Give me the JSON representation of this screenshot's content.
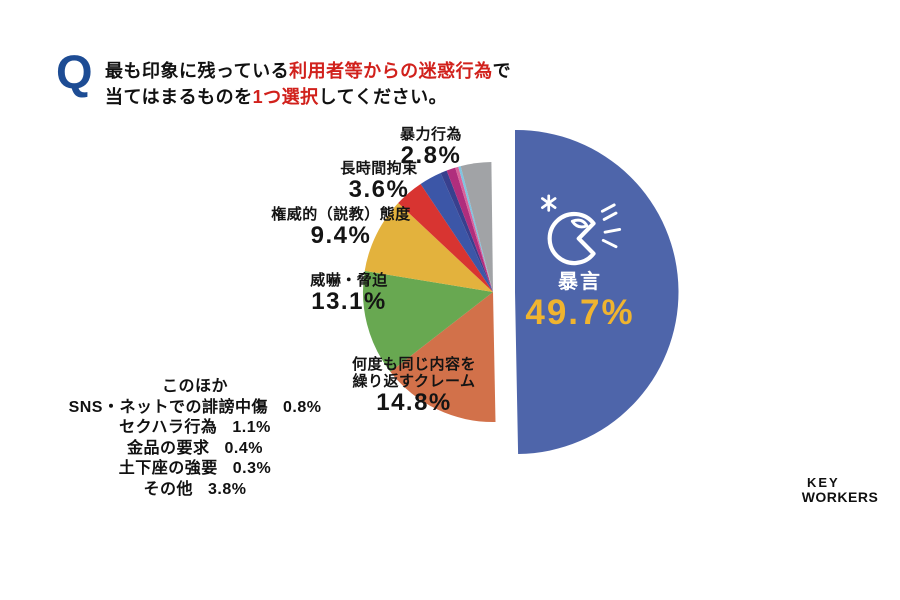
{
  "colors": {
    "q_mark_blue": "#1d4c94",
    "title_red": "#d1211c",
    "percent_yellow": "#f0b42f",
    "label_black": "#141414"
  },
  "question": {
    "mark": "Q",
    "line1": [
      {
        "t": "最も印象に残っている"
      },
      {
        "t": "利用者等からの迷惑行為"
      },
      {
        "t": "で"
      }
    ],
    "line2": [
      {
        "t": "当てはまるものを"
      },
      {
        "t": "1つ選択"
      },
      {
        "t": "してください。"
      }
    ]
  },
  "chart_data": {
    "type": "pie",
    "title": "最も印象に残っている利用者等からの迷惑行為で当てはまるものを1つ選択してください。",
    "unit": "%",
    "start_angle_deg": 0,
    "direction": "clockwise",
    "slices": [
      {
        "key": "verbal-abuse",
        "name": "暴言",
        "value": 49.7,
        "color": "#4e65aa",
        "exploded": true
      },
      {
        "key": "repeated-claims",
        "name": "何度も同じ内容を繰り返すクレーム",
        "value": 14.8,
        "color": "#d2714a"
      },
      {
        "key": "intimidation",
        "name": "威嚇・脅迫",
        "value": 13.1,
        "color": "#68a851"
      },
      {
        "key": "preachy-attitude",
        "name": "権威的（説教）態度",
        "value": 9.4,
        "color": "#e3b23d"
      },
      {
        "key": "long-restraint",
        "name": "長時間拘束",
        "value": 3.6,
        "color": "#d83431"
      },
      {
        "key": "violence",
        "name": "暴力行為",
        "value": 2.8,
        "color": "#3c56a7"
      },
      {
        "key": "sns-defamation",
        "name": "SNS・ネットでの誹謗中傷",
        "value": 0.8,
        "color": "#38408e"
      },
      {
        "key": "sexual-harassment",
        "name": "セクハラ行為",
        "value": 1.1,
        "color": "#b02e7d"
      },
      {
        "key": "demand-money",
        "name": "金品の要求",
        "value": 0.4,
        "color": "#d9639a"
      },
      {
        "key": "forced-dogeza",
        "name": "土下座の強要",
        "value": 0.3,
        "color": "#7fc4e1"
      },
      {
        "key": "other",
        "name": "その他",
        "value": 3.8,
        "color": "#a1a3a6"
      }
    ]
  },
  "labels": {
    "main": {
      "name": "暴言",
      "pct": "49.7%"
    },
    "claim": {
      "l1": "何度も同じ内容を",
      "l2": "繰り返すクレーム",
      "pct": "14.8%"
    },
    "intimidation": {
      "name": "威嚇・脅迫",
      "pct": "13.1%"
    },
    "preachy": {
      "name": "権威的（説教）態度",
      "pct": "9.4%"
    },
    "restraint": {
      "name": "長時間拘束",
      "pct": "3.6%"
    },
    "violence": {
      "name": "暴力行為",
      "pct": "2.8%"
    }
  },
  "others": {
    "heading": "このほか",
    "items": [
      {
        "name": "SNS・ネットでの誹謗中傷",
        "pct": "0.8%"
      },
      {
        "name": "セクハラ行為",
        "pct": "1.1%"
      },
      {
        "name": "金品の要求",
        "pct": "0.4%"
      },
      {
        "name": "土下座の強要",
        "pct": "0.3%"
      },
      {
        "name": "その他",
        "pct": "3.8%"
      }
    ]
  },
  "logo": {
    "line1": "KEY",
    "line2": "WORKERS"
  }
}
